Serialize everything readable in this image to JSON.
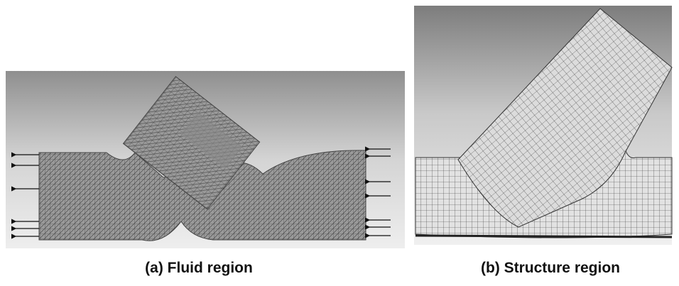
{
  "panels": [
    {
      "caption": "(a) Fluid region"
    },
    {
      "caption": "(b) Structure region"
    }
  ]
}
